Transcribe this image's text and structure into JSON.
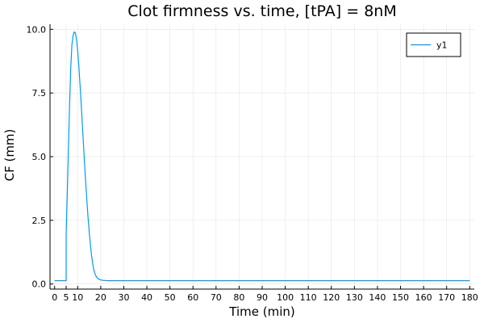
{
  "chart_data": {
    "type": "line",
    "title": "Clot firmness vs. time, [tPA] = 8nM",
    "xlabel": "Time (min)",
    "ylabel": "CF (mm)",
    "xlim": [
      -2,
      182
    ],
    "ylim": [
      -0.2,
      10.2
    ],
    "x_ticks": [
      0,
      5,
      10,
      20,
      30,
      40,
      50,
      60,
      70,
      80,
      90,
      100,
      110,
      120,
      130,
      140,
      150,
      160,
      170,
      180
    ],
    "x_tick_labels": [
      "0",
      "5",
      "10",
      "20",
      "30",
      "40",
      "50",
      "60",
      "70",
      "80",
      "90",
      "100",
      "110",
      "120",
      "130",
      "140",
      "150",
      "160",
      "170",
      "180"
    ],
    "y_ticks": [
      0,
      2.5,
      5.0,
      7.5,
      10.0
    ],
    "y_tick_labels": [
      "0.0",
      "2.5",
      "5.0",
      "7.5",
      "10.0"
    ],
    "grid": true,
    "legend_position": "top-right",
    "series": [
      {
        "name": "y1",
        "color": "#009AFA",
        "x": [
          0,
          1,
          2,
          3,
          4,
          5,
          5.01,
          5.5,
          6,
          6.5,
          7,
          7.5,
          8,
          8.5,
          9,
          9.5,
          10,
          10.5,
          11,
          11.5,
          12,
          12.5,
          13,
          13.5,
          14,
          14.5,
          15,
          15.5,
          16,
          16.5,
          17,
          17.5,
          18,
          18.5,
          19,
          19.5,
          20,
          20.5,
          21,
          21.5,
          22,
          22.5,
          23,
          23.5,
          24,
          25,
          30,
          40,
          60,
          80,
          100,
          120,
          140,
          160,
          180
        ],
        "y": [
          0.13,
          0.13,
          0.13,
          0.13,
          0.13,
          0.13,
          2.0,
          3.6,
          5.4,
          7.1,
          8.5,
          9.4,
          9.75,
          9.9,
          9.85,
          9.6,
          9.15,
          8.55,
          7.85,
          7.1,
          6.3,
          5.5,
          4.7,
          3.95,
          3.25,
          2.6,
          2.05,
          1.55,
          1.13,
          0.8,
          0.55,
          0.4,
          0.3,
          0.24,
          0.2,
          0.17,
          0.16,
          0.15,
          0.14,
          0.14,
          0.135,
          0.13,
          0.13,
          0.13,
          0.13,
          0.13,
          0.13,
          0.13,
          0.13,
          0.13,
          0.13,
          0.13,
          0.13,
          0.13,
          0.13
        ]
      }
    ]
  }
}
